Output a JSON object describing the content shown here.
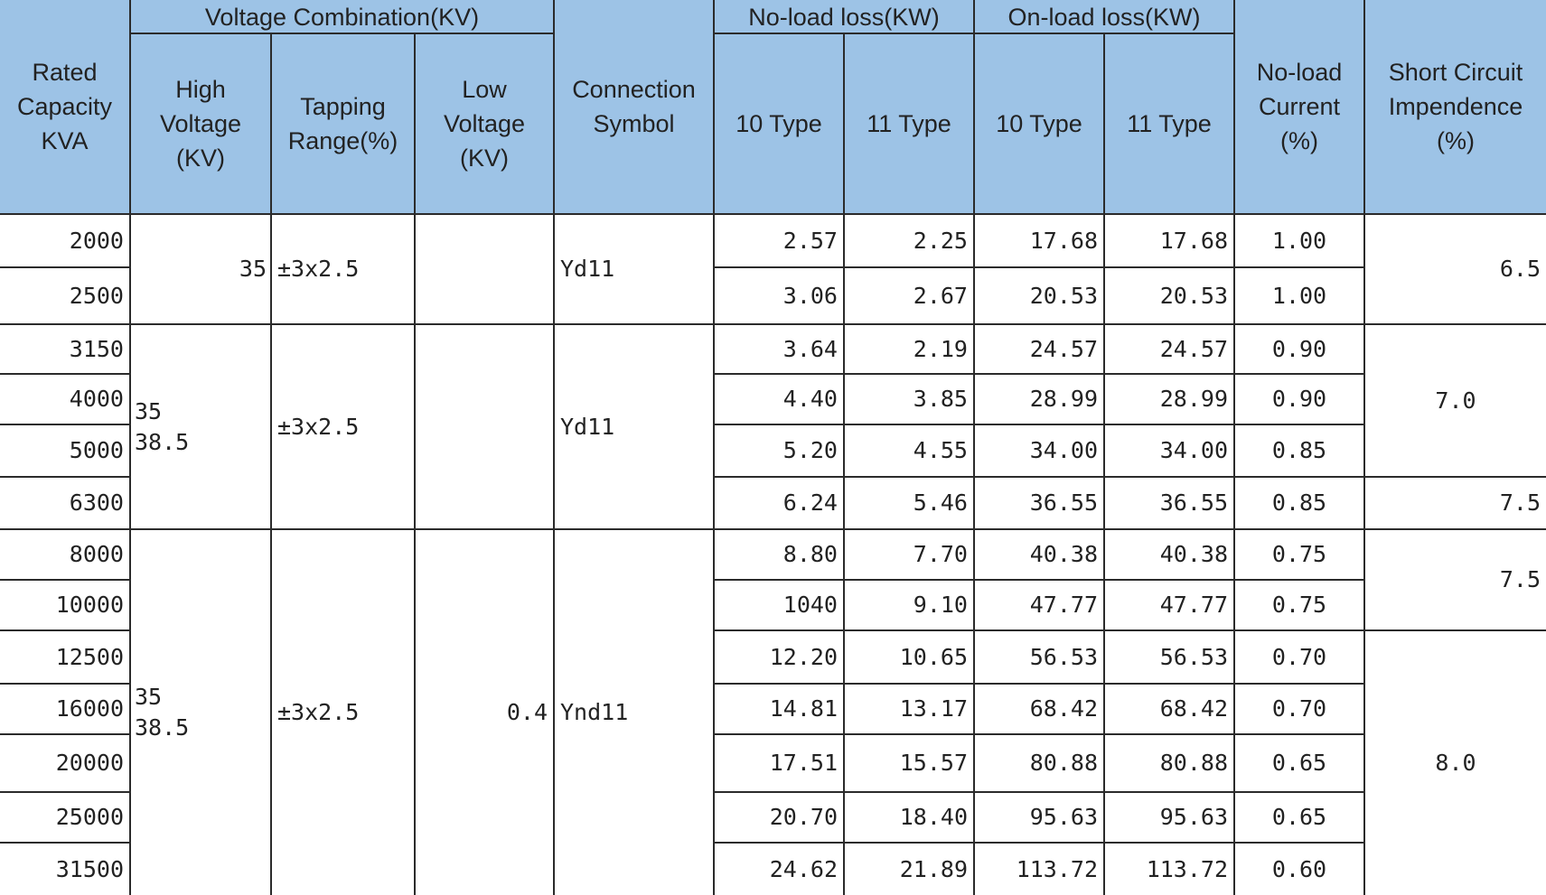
{
  "table": {
    "group_headers": [
      "Voltage Combination(KV)",
      "No-load loss(KW)",
      "On-load loss(KW)"
    ],
    "headers": [
      [
        "Rated",
        "Capacity",
        "KVA"
      ],
      [
        "High",
        "Voltage",
        "(KV)"
      ],
      [
        "Tapping",
        "Range(%)"
      ],
      [
        "Low",
        "Voltage",
        "(KV)"
      ],
      [
        "Connection",
        "Symbol"
      ],
      [
        "10 Type"
      ],
      [
        "11 Type"
      ],
      [
        "10 Type"
      ],
      [
        "11 Type"
      ],
      [
        "No-load",
        "Current",
        "(%)"
      ],
      [
        "Short Circuit",
        "Impendence",
        "(%)"
      ]
    ],
    "groups": [
      {
        "high_voltage": [
          "35"
        ],
        "tapping": "±3x2.5",
        "low_voltage": "",
        "connection": "Yd11"
      },
      {
        "high_voltage": [
          "35",
          "38.5"
        ],
        "tapping": "±3x2.5",
        "low_voltage": "",
        "connection": "Yd11"
      },
      {
        "high_voltage": [
          "35",
          "38.5"
        ],
        "tapping": "±3x2.5",
        "low_voltage": "0.4",
        "connection": "Ynd11"
      }
    ],
    "short_circuit": [
      "6.5",
      "7.0",
      "7.5",
      "7.5",
      "8.0"
    ],
    "rows": [
      [
        "2000",
        "2.57",
        "2.25",
        "17.68",
        "17.68",
        "1.00"
      ],
      [
        "2500",
        "3.06",
        "2.67",
        "20.53",
        "20.53",
        "1.00"
      ],
      [
        "3150",
        "3.64",
        "2.19",
        "24.57",
        "24.57",
        "0.90"
      ],
      [
        "4000",
        "4.40",
        "3.85",
        "28.99",
        "28.99",
        "0.90"
      ],
      [
        "5000",
        "5.20",
        "4.55",
        "34.00",
        "34.00",
        "0.85"
      ],
      [
        "6300",
        "6.24",
        "5.46",
        "36.55",
        "36.55",
        "0.85"
      ],
      [
        "8000",
        "8.80",
        "7.70",
        "40.38",
        "40.38",
        "0.75"
      ],
      [
        "10000",
        "1040",
        "9.10",
        "47.77",
        "47.77",
        "0.75"
      ],
      [
        "12500",
        "12.20",
        "10.65",
        "56.53",
        "56.53",
        "0.70"
      ],
      [
        "16000",
        "14.81",
        "13.17",
        "68.42",
        "68.42",
        "0.70"
      ],
      [
        "20000",
        "17.51",
        "15.57",
        "80.88",
        "80.88",
        "0.65"
      ],
      [
        "25000",
        "20.70",
        "18.40",
        "95.63",
        "95.63",
        "0.65"
      ],
      [
        "31500",
        "24.62",
        "21.89",
        "113.72",
        "113.72",
        "0.60"
      ]
    ]
  }
}
